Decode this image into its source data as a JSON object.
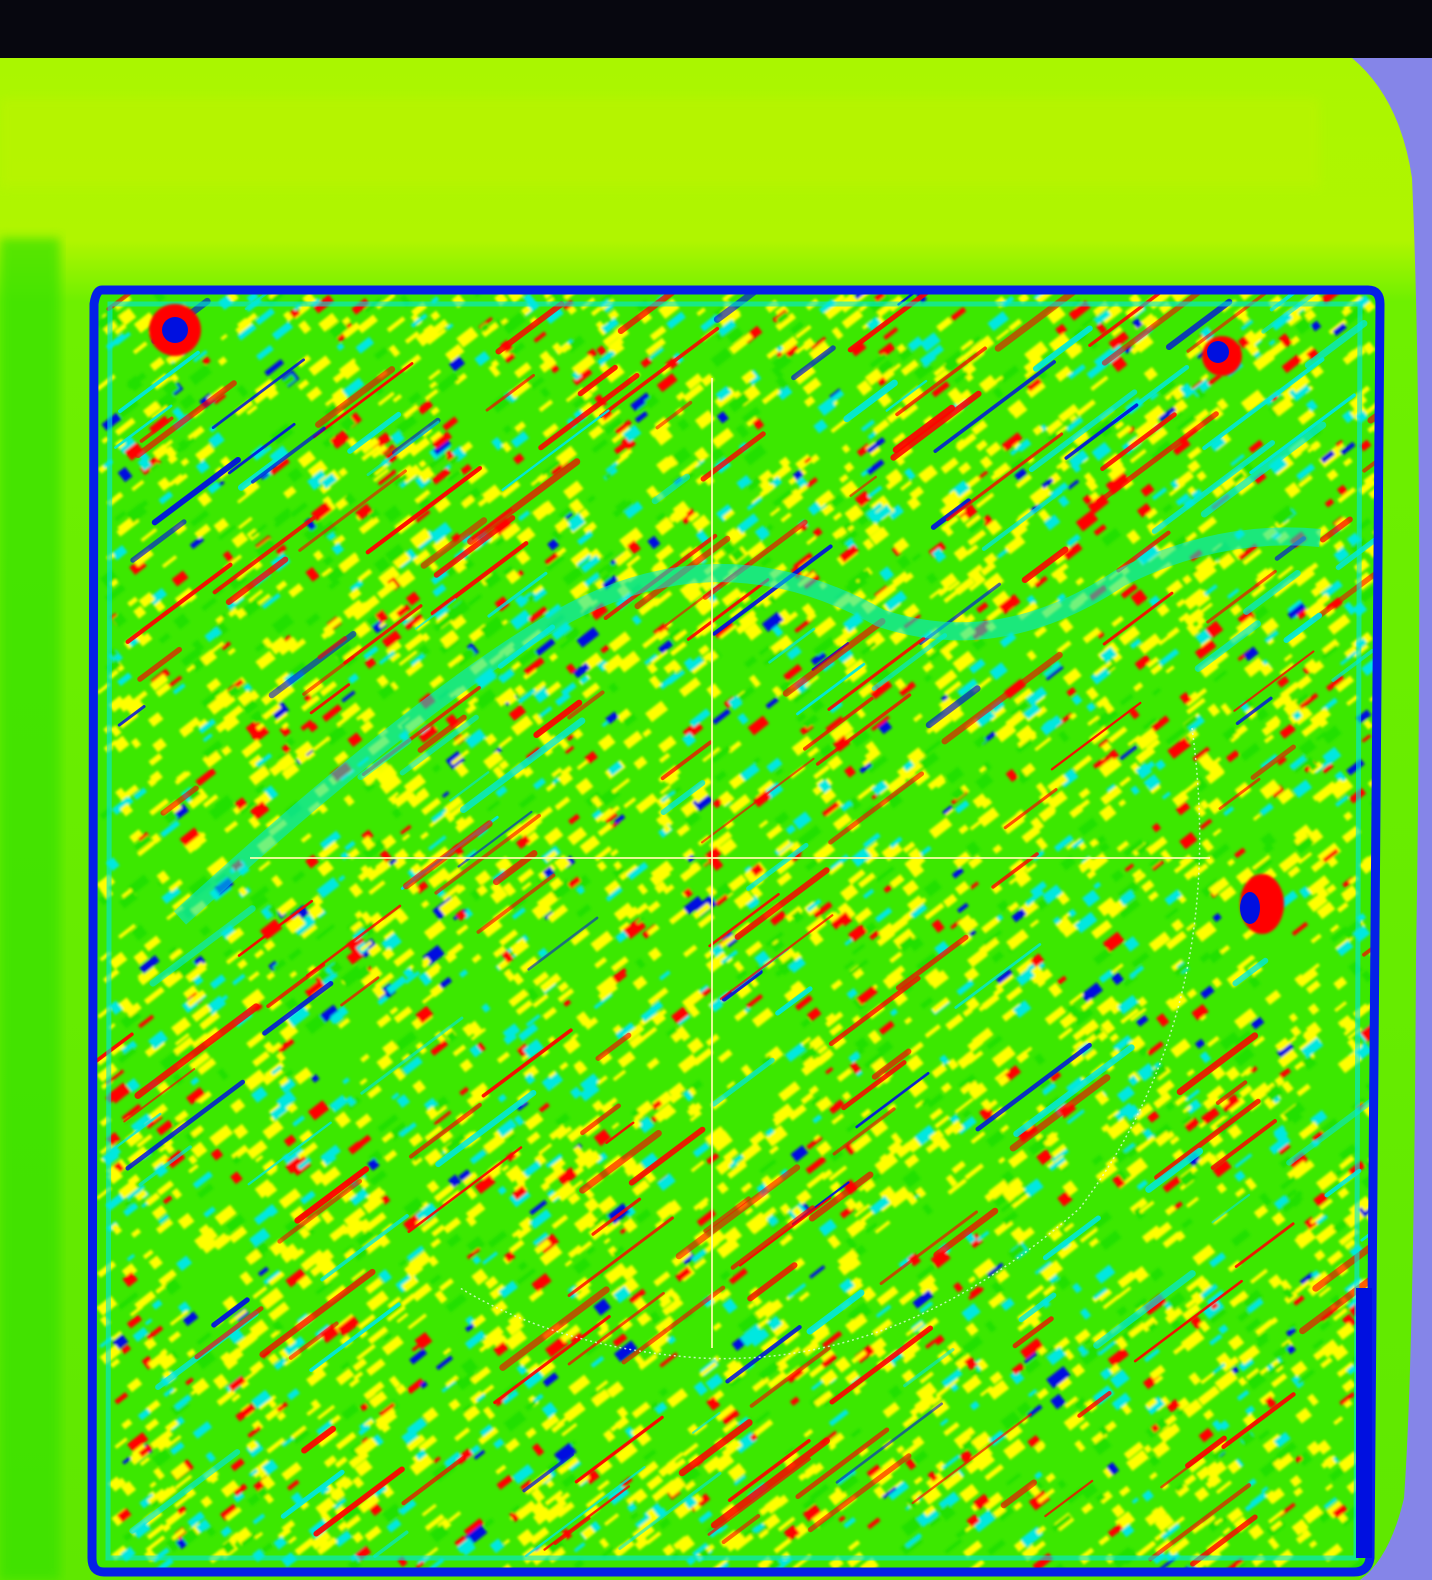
{
  "viewer": {
    "colormap": [
      "#0010e0",
      "#00e8e0",
      "#22e000",
      "#ffff00",
      "#ff0000"
    ],
    "background_color": "#8585e8",
    "outer_field_color": "#a6f400",
    "plate_color": "#3ce800",
    "border_color": "#0420e8"
  }
}
